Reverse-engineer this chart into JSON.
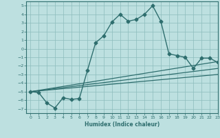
{
  "xlabel": "Humidex (Indice chaleur)",
  "xlim": [
    -0.5,
    23
  ],
  "ylim": [
    -7.5,
    5.5
  ],
  "yticks": [
    -7,
    -6,
    -5,
    -4,
    -3,
    -2,
    -1,
    0,
    1,
    2,
    3,
    4,
    5
  ],
  "xticks": [
    0,
    1,
    2,
    3,
    4,
    5,
    6,
    7,
    8,
    9,
    10,
    11,
    12,
    13,
    14,
    15,
    16,
    17,
    18,
    19,
    20,
    21,
    22,
    23
  ],
  "bg_color": "#bde0e0",
  "line_color": "#2e6e6e",
  "grid_color": "#8cbcbc",
  "series": [
    {
      "x": [
        0,
        1,
        2,
        3,
        4,
        5,
        6,
        7,
        8,
        9,
        10,
        11,
        12,
        13,
        14,
        15,
        16,
        17,
        18,
        19,
        20,
        21,
        22,
        23
      ],
      "y": [
        -5.0,
        -5.1,
        -6.3,
        -6.9,
        -5.7,
        -5.9,
        -5.8,
        -2.5,
        0.7,
        1.5,
        3.1,
        4.0,
        3.2,
        3.4,
        4.0,
        5.0,
        3.2,
        -0.6,
        -0.8,
        -1.0,
        -2.3,
        -1.1,
        -1.1,
        -1.6
      ],
      "marker": "D",
      "markersize": 2.5,
      "linewidth": 1.0
    },
    {
      "x": [
        0,
        23
      ],
      "y": [
        -5.0,
        -1.5
      ],
      "marker": null,
      "linewidth": 0.9
    },
    {
      "x": [
        0,
        23
      ],
      "y": [
        -5.0,
        -2.3
      ],
      "marker": null,
      "linewidth": 0.9
    },
    {
      "x": [
        0,
        23
      ],
      "y": [
        -5.0,
        -3.0
      ],
      "marker": null,
      "linewidth": 0.9
    }
  ]
}
